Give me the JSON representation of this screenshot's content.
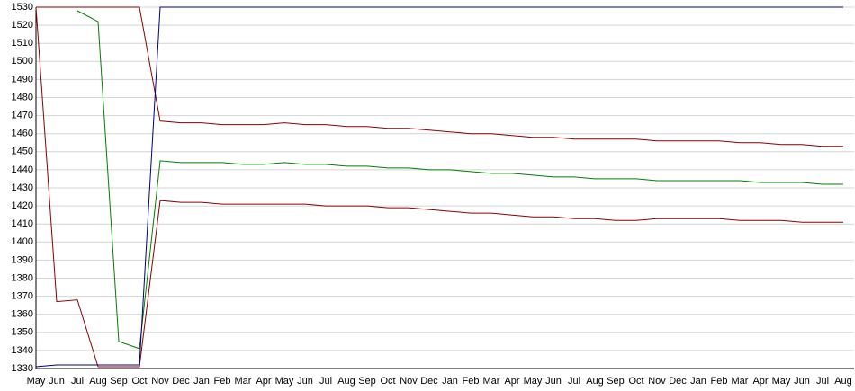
{
  "chart_data": {
    "type": "line",
    "categories": [
      "May",
      "Jun",
      "Jul",
      "Aug",
      "Sep",
      "Oct",
      "Nov",
      "Dec",
      "Jan",
      "Feb",
      "Mar",
      "Apr",
      "May",
      "Jun",
      "Jul",
      "Aug",
      "Sep",
      "Oct",
      "Nov",
      "Dec",
      "Jan",
      "Feb",
      "Mar",
      "Apr",
      "May",
      "Jun",
      "Jul",
      "Aug",
      "Sep",
      "Oct",
      "Nov",
      "Dec",
      "Jan",
      "Feb",
      "Mar",
      "Apr",
      "May",
      "Jun",
      "Jul",
      "Aug"
    ],
    "series": [
      {
        "color": "#8b0000",
        "values": [
          1530,
          1530,
          1530,
          1530,
          1530,
          1530,
          1467,
          1466,
          1466,
          1465,
          1465,
          1465,
          1466,
          1465,
          1465,
          1464,
          1464,
          1463,
          1463,
          1462,
          1461,
          1460,
          1460,
          1459,
          1458,
          1458,
          1457,
          1457,
          1457,
          1457,
          1456,
          1456,
          1456,
          1456,
          1455,
          1455,
          1454,
          1454,
          1453,
          1453
        ]
      },
      {
        "color": "#008000",
        "values": [
          null,
          null,
          1528,
          1522,
          1345,
          1341,
          1445,
          1444,
          1444,
          1444,
          1443,
          1443,
          1444,
          1443,
          1443,
          1442,
          1442,
          1441,
          1441,
          1440,
          1440,
          1439,
          1438,
          1438,
          1437,
          1436,
          1436,
          1435,
          1435,
          1435,
          1434,
          1434,
          1434,
          1434,
          1434,
          1433,
          1433,
          1433,
          1432,
          1432
        ]
      },
      {
        "color": "#8b0000",
        "values": [
          1530,
          1367,
          1368,
          1331,
          1331,
          1331,
          1423,
          1422,
          1422,
          1421,
          1421,
          1421,
          1421,
          1421,
          1420,
          1420,
          1420,
          1419,
          1419,
          1418,
          1417,
          1416,
          1416,
          1415,
          1414,
          1414,
          1413,
          1413,
          1412,
          1412,
          1413,
          1413,
          1413,
          1413,
          1412,
          1412,
          1412,
          1411,
          1411,
          1411
        ]
      },
      {
        "color": "#000080",
        "values": [
          1331,
          1332,
          1332,
          1332,
          1332,
          1332,
          1530,
          1530,
          1530,
          1530,
          1530,
          1530,
          1530,
          1530,
          1530,
          1530,
          1530,
          1530,
          1530,
          1530,
          1530,
          1530,
          1530,
          1530,
          1530,
          1530,
          1530,
          1530,
          1530,
          1530,
          1530,
          1530,
          1530,
          1530,
          1530,
          1530,
          1530,
          1530,
          1530,
          1530
        ]
      }
    ],
    "ylim": [
      1330,
      1530
    ],
    "yticks": [
      1330,
      1340,
      1350,
      1360,
      1370,
      1380,
      1390,
      1400,
      1410,
      1420,
      1430,
      1440,
      1450,
      1460,
      1470,
      1480,
      1490,
      1500,
      1510,
      1520,
      1530
    ],
    "grid": true
  }
}
